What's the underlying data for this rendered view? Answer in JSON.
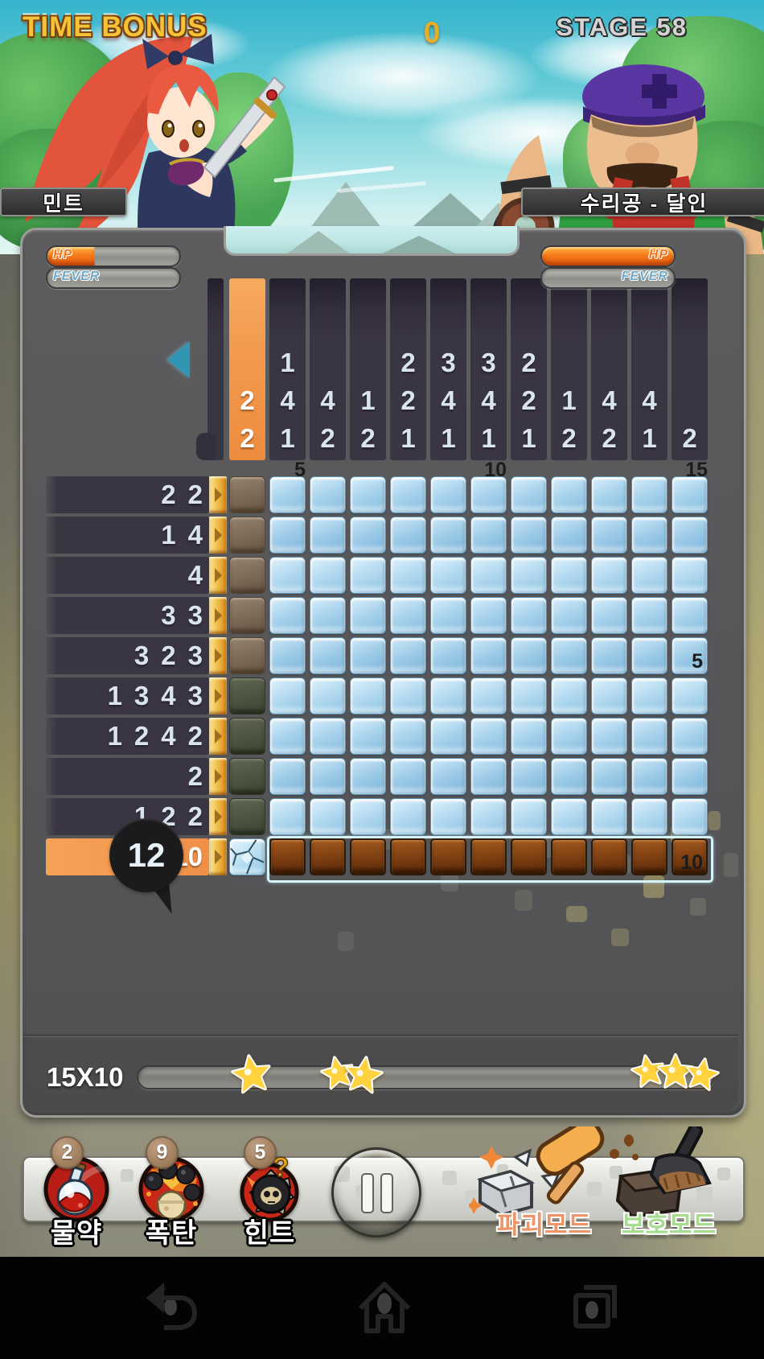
{
  "header": {
    "time_bonus": "TIME BONUS",
    "score": "0",
    "stage": "STAGE 58",
    "player_name": "민트",
    "opponent_name": "수리공 - 달인"
  },
  "status": {
    "hp_label": "HP",
    "fever_label": "FEVER",
    "player_hp_percent": 36,
    "opponent_hp_percent": 100
  },
  "puzzle": {
    "size_label": "15X10",
    "combo_count": "12",
    "selected_col_index": 0,
    "selected_row_index": 9,
    "has_partial_left_column": true,
    "col_hints": [
      [
        "2",
        "2"
      ],
      [
        "1",
        "4",
        "1"
      ],
      [
        "4",
        "2"
      ],
      [
        "1",
        "2"
      ],
      [
        "2",
        "2",
        "1"
      ],
      [
        "3",
        "4",
        "1"
      ],
      [
        "3",
        "4",
        "1"
      ],
      [
        "2",
        "2",
        "1"
      ],
      [
        "1",
        "2"
      ],
      [
        "4",
        "2"
      ],
      [
        "4",
        "1"
      ],
      [
        "2"
      ]
    ],
    "row_hints": [
      [
        "2",
        "2"
      ],
      [
        "1",
        "4"
      ],
      [
        "4"
      ],
      [
        "3",
        "3"
      ],
      [
        "3",
        "2",
        "3"
      ],
      [
        "1",
        "3",
        "4",
        "3"
      ],
      [
        "1",
        "2",
        "4",
        "2"
      ],
      [
        "2"
      ],
      [
        "1",
        "2",
        "2"
      ],
      [
        "10"
      ]
    ],
    "col_markers": [
      {
        "col": 1,
        "label": "5"
      },
      {
        "col": 6,
        "label": "10"
      },
      {
        "col": 11,
        "label": "15"
      }
    ],
    "row_markers": [
      {
        "row": 4,
        "label": "5"
      },
      {
        "row": 9,
        "label": "10"
      }
    ],
    "cells": [
      "gbbbbbbbbbbb",
      "gbbbbbbbbbbb",
      "gbbbbbbbbbbb",
      "gbbbbbbbbbbb",
      "gbbbbbbbbbbb",
      "obbbbbbbbbbb",
      "obbbbbbbbbbb",
      "obbbbbbbbbbb",
      "obbbbbbbbbbb",
      "kddddddddddd"
    ],
    "cell_legend": {
      "b": "blue-block",
      "g": "gray-brown-block",
      "o": "olive-block",
      "d": "destroyed-brown-block",
      "k": "cracked-selected-block"
    }
  },
  "progress": {
    "star_milestones": [
      1,
      2,
      3
    ]
  },
  "toolbar": {
    "items": [
      {
        "label": "물약",
        "count": "2",
        "icon": "potion-icon"
      },
      {
        "label": "폭탄",
        "count": "9",
        "icon": "bomb-icon"
      },
      {
        "label": "힌트",
        "count": "5",
        "icon": "hint-icon"
      }
    ],
    "destroy_mode_label": "파괴모드",
    "protect_mode_label": "보호모드"
  },
  "colors": {
    "accent_orange": "#F29A4E",
    "tile_blue": "#A9D4EC",
    "tile_destroyed": "#7C3D10",
    "hint_bar": "#3A3542",
    "panel_gray": "#565658",
    "gold_star": "#FFD23E"
  }
}
